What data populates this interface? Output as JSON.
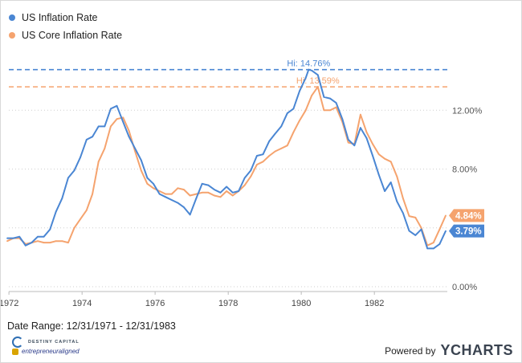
{
  "chart_data": {
    "type": "line",
    "x_range": [
      "1971-12-31",
      "1983-12-31"
    ],
    "ylim": [
      0,
      16
    ],
    "y_ticks": [
      0,
      4,
      8,
      12
    ],
    "y_tick_labels": [
      "0.00%",
      "",
      "8.00%",
      "12.00%"
    ],
    "x_ticks": [
      1972,
      1974,
      1976,
      1978,
      1980,
      1982
    ],
    "x_tick_labels": [
      "1972",
      "1974",
      "1976",
      "1978",
      "1980",
      "1982"
    ],
    "grid": "horizontal dotted",
    "legend_position": "top-left",
    "series": [
      {
        "name": "US Inflation Rate",
        "color": "#4a86d3",
        "latest_label": "3.79%",
        "high_label": "Hi: 14.76%",
        "high_value": 14.76,
        "points": [
          [
            "1971-12",
            3.3
          ],
          [
            "1972-02",
            3.3
          ],
          [
            "1972-04",
            3.4
          ],
          [
            "1972-06",
            2.8
          ],
          [
            "1972-08",
            3.0
          ],
          [
            "1972-10",
            3.4
          ],
          [
            "1972-12",
            3.4
          ],
          [
            "1973-02",
            3.9
          ],
          [
            "1973-04",
            5.1
          ],
          [
            "1973-06",
            6.0
          ],
          [
            "1973-08",
            7.4
          ],
          [
            "1973-10",
            7.9
          ],
          [
            "1973-12",
            8.8
          ],
          [
            "1974-02",
            10.0
          ],
          [
            "1974-04",
            10.2
          ],
          [
            "1974-06",
            10.9
          ],
          [
            "1974-08",
            10.9
          ],
          [
            "1974-10",
            12.1
          ],
          [
            "1974-12",
            12.3
          ],
          [
            "1975-02",
            11.2
          ],
          [
            "1975-04",
            10.2
          ],
          [
            "1975-06",
            9.4
          ],
          [
            "1975-08",
            8.6
          ],
          [
            "1975-10",
            7.4
          ],
          [
            "1975-12",
            7.0
          ],
          [
            "1976-02",
            6.3
          ],
          [
            "1976-04",
            6.1
          ],
          [
            "1976-06",
            5.9
          ],
          [
            "1976-08",
            5.7
          ],
          [
            "1976-10",
            5.4
          ],
          [
            "1976-12",
            4.9
          ],
          [
            "1977-02",
            6.0
          ],
          [
            "1977-04",
            7.0
          ],
          [
            "1977-06",
            6.9
          ],
          [
            "1977-08",
            6.6
          ],
          [
            "1977-10",
            6.4
          ],
          [
            "1977-12",
            6.8
          ],
          [
            "1978-02",
            6.4
          ],
          [
            "1978-04",
            6.5
          ],
          [
            "1978-06",
            7.4
          ],
          [
            "1978-08",
            7.9
          ],
          [
            "1978-10",
            8.9
          ],
          [
            "1978-12",
            9.0
          ],
          [
            "1979-02",
            9.9
          ],
          [
            "1979-04",
            10.4
          ],
          [
            "1979-06",
            10.9
          ],
          [
            "1979-08",
            11.8
          ],
          [
            "1979-10",
            12.1
          ],
          [
            "1979-12",
            13.3
          ],
          [
            "1980-02",
            14.2
          ],
          [
            "1980-03",
            14.76
          ],
          [
            "1980-04",
            14.7
          ],
          [
            "1980-06",
            14.4
          ],
          [
            "1980-08",
            12.9
          ],
          [
            "1980-10",
            12.8
          ],
          [
            "1980-12",
            12.5
          ],
          [
            "1981-02",
            11.4
          ],
          [
            "1981-04",
            10.0
          ],
          [
            "1981-06",
            9.6
          ],
          [
            "1981-08",
            10.8
          ],
          [
            "1981-10",
            10.1
          ],
          [
            "1981-12",
            8.9
          ],
          [
            "1982-02",
            7.6
          ],
          [
            "1982-04",
            6.5
          ],
          [
            "1982-06",
            7.1
          ],
          [
            "1982-08",
            5.8
          ],
          [
            "1982-10",
            5.0
          ],
          [
            "1982-12",
            3.8
          ],
          [
            "1983-02",
            3.5
          ],
          [
            "1983-04",
            3.9
          ],
          [
            "1983-06",
            2.6
          ],
          [
            "1983-08",
            2.6
          ],
          [
            "1983-10",
            2.9
          ],
          [
            "1983-12",
            3.79
          ]
        ]
      },
      {
        "name": "US Core Inflation Rate",
        "color": "#f5a36e",
        "latest_label": "4.84%",
        "high_label": "Hi: 13.59%",
        "high_value": 13.59,
        "points": [
          [
            "1971-12",
            3.1
          ],
          [
            "1972-02",
            3.3
          ],
          [
            "1972-04",
            3.3
          ],
          [
            "1972-06",
            2.9
          ],
          [
            "1972-08",
            3.0
          ],
          [
            "1972-10",
            3.1
          ],
          [
            "1972-12",
            3.0
          ],
          [
            "1973-02",
            3.0
          ],
          [
            "1973-04",
            3.1
          ],
          [
            "1973-06",
            3.1
          ],
          [
            "1973-08",
            3.0
          ],
          [
            "1973-10",
            4.0
          ],
          [
            "1973-12",
            4.6
          ],
          [
            "1974-02",
            5.2
          ],
          [
            "1974-04",
            6.3
          ],
          [
            "1974-06",
            8.5
          ],
          [
            "1974-08",
            9.4
          ],
          [
            "1974-10",
            10.9
          ],
          [
            "1974-12",
            11.4
          ],
          [
            "1975-02",
            11.5
          ],
          [
            "1975-04",
            10.6
          ],
          [
            "1975-06",
            9.2
          ],
          [
            "1975-08",
            7.9
          ],
          [
            "1975-10",
            7.0
          ],
          [
            "1975-12",
            6.7
          ],
          [
            "1976-02",
            6.5
          ],
          [
            "1976-04",
            6.3
          ],
          [
            "1976-06",
            6.3
          ],
          [
            "1976-08",
            6.7
          ],
          [
            "1976-10",
            6.6
          ],
          [
            "1976-12",
            6.2
          ],
          [
            "1977-02",
            6.3
          ],
          [
            "1977-04",
            6.4
          ],
          [
            "1977-06",
            6.4
          ],
          [
            "1977-08",
            6.2
          ],
          [
            "1977-10",
            6.1
          ],
          [
            "1977-12",
            6.5
          ],
          [
            "1978-02",
            6.2
          ],
          [
            "1978-04",
            6.5
          ],
          [
            "1978-06",
            6.9
          ],
          [
            "1978-08",
            7.5
          ],
          [
            "1978-10",
            8.3
          ],
          [
            "1978-12",
            8.5
          ],
          [
            "1979-02",
            8.9
          ],
          [
            "1979-04",
            9.2
          ],
          [
            "1979-06",
            9.4
          ],
          [
            "1979-08",
            9.6
          ],
          [
            "1979-10",
            10.5
          ],
          [
            "1979-12",
            11.3
          ],
          [
            "1980-02",
            12.0
          ],
          [
            "1980-04",
            13.0
          ],
          [
            "1980-06",
            13.59
          ],
          [
            "1980-08",
            12.0
          ],
          [
            "1980-10",
            12.0
          ],
          [
            "1980-12",
            12.2
          ],
          [
            "1981-02",
            11.2
          ],
          [
            "1981-04",
            9.8
          ],
          [
            "1981-06",
            9.7
          ],
          [
            "1981-08",
            11.7
          ],
          [
            "1981-10",
            10.5
          ],
          [
            "1981-12",
            9.7
          ],
          [
            "1982-02",
            9.0
          ],
          [
            "1982-04",
            8.7
          ],
          [
            "1982-06",
            8.5
          ],
          [
            "1982-08",
            7.5
          ],
          [
            "1982-10",
            6.0
          ],
          [
            "1982-12",
            4.8
          ],
          [
            "1983-02",
            4.7
          ],
          [
            "1983-04",
            4.0
          ],
          [
            "1983-06",
            2.8
          ],
          [
            "1983-08",
            3.0
          ],
          [
            "1983-10",
            3.9
          ],
          [
            "1983-12",
            4.84
          ]
        ]
      }
    ]
  },
  "footer": {
    "date_range": "Date Range: 12/31/1971 - 12/31/1983",
    "brand1": "DESTINY CAPITAL",
    "brand2": "entrepreneuraligned",
    "powered_by": "Powered by",
    "ycharts": "YCHARTS"
  }
}
